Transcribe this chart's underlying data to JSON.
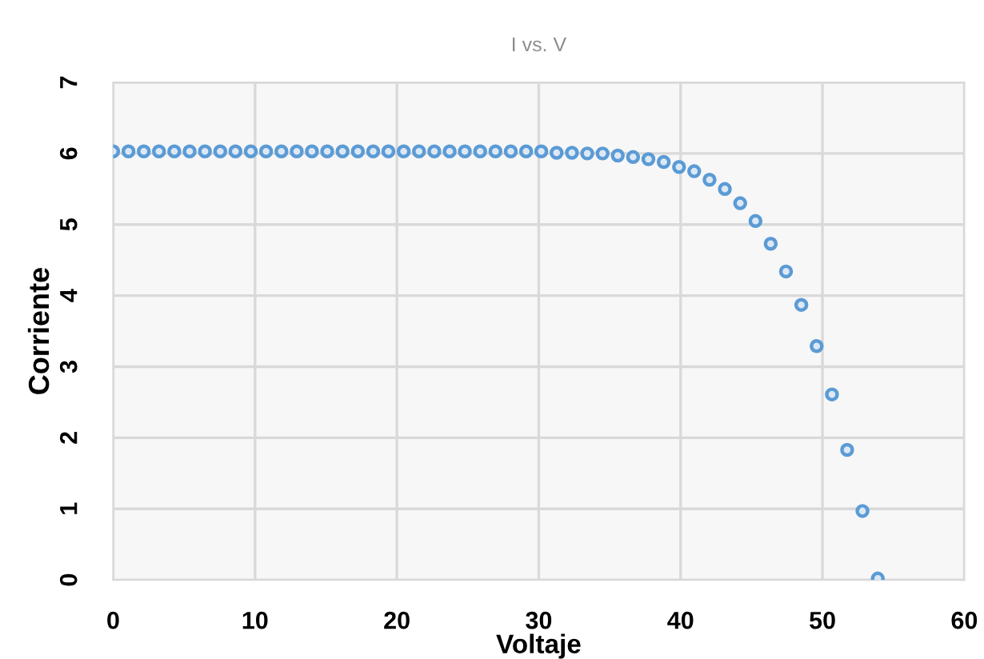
{
  "chart_data": {
    "type": "scatter",
    "title": "I vs. V",
    "xlabel": "Voltaje",
    "ylabel": "Corriente",
    "xlim": [
      0,
      60
    ],
    "xticks": [
      0,
      10,
      20,
      30,
      40,
      50,
      60
    ],
    "ylim": [
      0,
      7
    ],
    "yticks": [
      0,
      1,
      2,
      3,
      4,
      5,
      6,
      7
    ],
    "grid": true,
    "marker": "circle",
    "legend": false,
    "x": [
      0.0,
      1.08,
      2.16,
      3.23,
      4.31,
      5.39,
      6.47,
      7.55,
      8.62,
      9.7,
      10.78,
      11.86,
      12.94,
      14.01,
      15.09,
      16.17,
      17.25,
      18.33,
      19.4,
      20.48,
      21.56,
      22.64,
      23.72,
      24.79,
      25.87,
      26.95,
      28.03,
      29.11,
      30.18,
      31.26,
      32.34,
      33.42,
      34.5,
      35.57,
      36.65,
      37.73,
      38.81,
      39.89,
      40.96,
      42.04,
      43.12,
      44.2,
      45.28,
      46.35,
      47.43,
      48.51,
      49.59,
      50.67,
      51.74,
      52.82,
      53.9
    ],
    "series": [
      {
        "color": "#5b9bd5",
        "values": [
          6.03,
          6.03,
          6.03,
          6.03,
          6.03,
          6.03,
          6.03,
          6.03,
          6.03,
          6.03,
          6.03,
          6.03,
          6.03,
          6.03,
          6.03,
          6.03,
          6.03,
          6.03,
          6.03,
          6.03,
          6.03,
          6.03,
          6.03,
          6.03,
          6.03,
          6.03,
          6.03,
          6.03,
          6.03,
          6.01,
          6.01,
          6.0,
          6.0,
          5.97,
          5.95,
          5.92,
          5.88,
          5.81,
          5.75,
          5.63,
          5.5,
          5.3,
          5.05,
          4.73,
          4.34,
          3.87,
          3.29,
          2.61,
          1.83,
          0.97,
          0.02
        ]
      }
    ]
  }
}
